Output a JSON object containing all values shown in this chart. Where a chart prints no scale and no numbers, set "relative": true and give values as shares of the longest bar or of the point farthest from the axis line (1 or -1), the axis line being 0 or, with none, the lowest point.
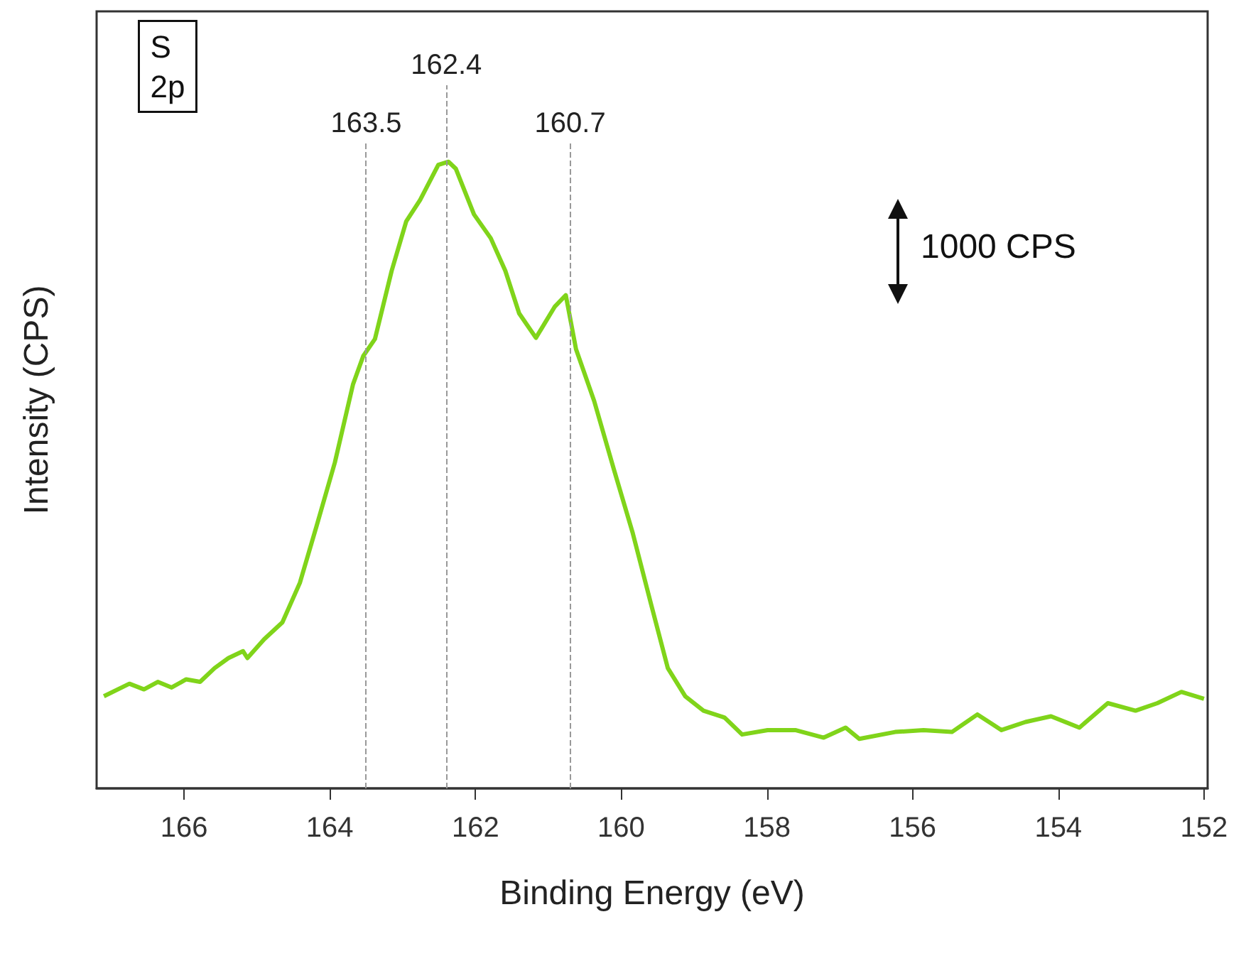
{
  "chart_data": {
    "type": "line",
    "xlabel": "Binding Energy (eV)",
    "ylabel": "Intensity (CPS)",
    "relative": true,
    "marker": "none",
    "annotations": [
      "S\n2p",
      "1000 CPS"
    ],
    "xlim": [
      167.2,
      151.95
    ],
    "xticks": [
      166,
      164,
      162,
      160,
      158,
      156,
      154,
      152
    ],
    "ref_lines": [
      {
        "axis": "x",
        "value": 163.5,
        "label": "163.5",
        "color": "#999999",
        "line_style": "dashed"
      },
      {
        "axis": "x",
        "value": 162.4,
        "label": "162.4",
        "color": "#999999",
        "line_style": "dashed"
      },
      {
        "axis": "x",
        "value": 160.7,
        "label": "160.7",
        "color": "#999999",
        "line_style": "dashed"
      }
    ],
    "x": [
      167.1,
      166.75,
      166.55,
      166.36,
      166.17,
      165.97,
      165.78,
      165.58,
      165.39,
      165.19,
      165.13,
      164.9,
      164.65,
      164.41,
      164.18,
      163.93,
      163.68,
      163.54,
      163.38,
      163.15,
      162.95,
      162.76,
      162.51,
      162.37,
      162.27,
      162.02,
      161.79,
      161.59,
      161.4,
      161.17,
      160.91,
      160.76,
      160.62,
      160.37,
      160.1,
      159.84,
      159.59,
      159.36,
      159.12,
      158.87,
      158.58,
      158.34,
      157.99,
      157.61,
      157.22,
      156.92,
      156.73,
      156.24,
      155.85,
      155.46,
      155.11,
      154.78,
      154.45,
      154.1,
      153.71,
      153.32,
      152.94,
      152.64,
      152.31,
      152.0
    ],
    "series": [
      {
        "color": "#80d41a",
        "values": [
          0.147,
          0.167,
          0.158,
          0.17,
          0.161,
          0.174,
          0.17,
          0.192,
          0.208,
          0.219,
          0.208,
          0.238,
          0.265,
          0.328,
          0.419,
          0.52,
          0.645,
          0.69,
          0.717,
          0.826,
          0.905,
          0.939,
          0.995,
          1.0,
          0.989,
          0.916,
          0.878,
          0.826,
          0.758,
          0.719,
          0.769,
          0.787,
          0.701,
          0.618,
          0.509,
          0.407,
          0.294,
          0.192,
          0.147,
          0.124,
          0.113,
          0.086,
          0.093,
          0.093,
          0.081,
          0.097,
          0.079,
          0.09,
          0.093,
          0.09,
          0.118,
          0.093,
          0.106,
          0.115,
          0.097,
          0.136,
          0.124,
          0.136,
          0.154,
          0.143
        ]
      }
    ]
  }
}
